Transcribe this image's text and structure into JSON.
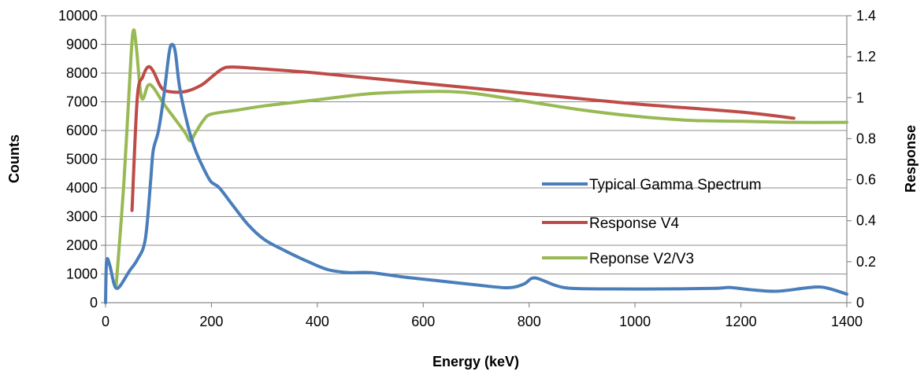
{
  "chart_data": {
    "type": "line",
    "title": "",
    "xlabel": "Energy (keV)",
    "ylabel": "Counts",
    "y2label": "Response",
    "xlim": [
      0,
      1400
    ],
    "ylim": [
      0,
      10000
    ],
    "y2lim": [
      0,
      1.4
    ],
    "x_ticks": [
      0,
      200,
      400,
      600,
      800,
      1000,
      1200,
      1400
    ],
    "y_ticks": [
      0,
      1000,
      2000,
      3000,
      4000,
      5000,
      6000,
      7000,
      8000,
      9000,
      10000
    ],
    "y2_ticks": [
      0,
      0.2,
      0.4,
      0.6,
      0.8,
      1,
      1.2,
      1.4
    ],
    "grid": true,
    "legend_position": "right",
    "series": [
      {
        "name": "Typical Gamma Spectrum",
        "axis": "left",
        "color": "#4a7ebb",
        "points": [
          [
            0,
            0
          ],
          [
            2,
            1450
          ],
          [
            8,
            1300
          ],
          [
            16,
            650
          ],
          [
            22,
            500
          ],
          [
            30,
            650
          ],
          [
            45,
            1100
          ],
          [
            60,
            1500
          ],
          [
            75,
            2200
          ],
          [
            85,
            4200
          ],
          [
            90,
            5300
          ],
          [
            100,
            6000
          ],
          [
            110,
            7200
          ],
          [
            120,
            8700
          ],
          [
            126,
            9000
          ],
          [
            132,
            8700
          ],
          [
            140,
            7500
          ],
          [
            155,
            6200
          ],
          [
            170,
            5300
          ],
          [
            190,
            4500
          ],
          [
            200,
            4200
          ],
          [
            215,
            4000
          ],
          [
            240,
            3400
          ],
          [
            270,
            2700
          ],
          [
            300,
            2200
          ],
          [
            340,
            1800
          ],
          [
            380,
            1450
          ],
          [
            420,
            1150
          ],
          [
            460,
            1050
          ],
          [
            500,
            1050
          ],
          [
            560,
            900
          ],
          [
            620,
            780
          ],
          [
            700,
            620
          ],
          [
            760,
            520
          ],
          [
            790,
            650
          ],
          [
            805,
            850
          ],
          [
            820,
            820
          ],
          [
            850,
            600
          ],
          [
            880,
            500
          ],
          [
            950,
            480
          ],
          [
            1050,
            480
          ],
          [
            1150,
            500
          ],
          [
            1180,
            530
          ],
          [
            1220,
            450
          ],
          [
            1270,
            400
          ],
          [
            1330,
            530
          ],
          [
            1360,
            520
          ],
          [
            1400,
            300
          ]
        ]
      },
      {
        "name": "Response V4",
        "axis": "right",
        "color": "#be4b48",
        "points": [
          [
            50,
            0.45
          ],
          [
            60,
            1.0
          ],
          [
            70,
            1.1
          ],
          [
            80,
            1.15
          ],
          [
            90,
            1.13
          ],
          [
            105,
            1.05
          ],
          [
            120,
            1.03
          ],
          [
            150,
            1.03
          ],
          [
            180,
            1.06
          ],
          [
            200,
            1.1
          ],
          [
            220,
            1.14
          ],
          [
            240,
            1.15
          ],
          [
            300,
            1.14
          ],
          [
            400,
            1.12
          ],
          [
            600,
            1.07
          ],
          [
            800,
            1.02
          ],
          [
            1000,
            0.97
          ],
          [
            1200,
            0.93
          ],
          [
            1300,
            0.9
          ]
        ]
      },
      {
        "name": "Reponse V2/V3",
        "axis": "right",
        "color": "#98b954",
        "points": [
          [
            20,
            0.08
          ],
          [
            35,
            0.6
          ],
          [
            48,
            1.2
          ],
          [
            53,
            1.33
          ],
          [
            58,
            1.25
          ],
          [
            68,
            1.0
          ],
          [
            80,
            1.06
          ],
          [
            90,
            1.05
          ],
          [
            110,
            0.97
          ],
          [
            130,
            0.9
          ],
          [
            150,
            0.83
          ],
          [
            160,
            0.79
          ],
          [
            170,
            0.83
          ],
          [
            185,
            0.89
          ],
          [
            200,
            0.92
          ],
          [
            250,
            0.94
          ],
          [
            300,
            0.96
          ],
          [
            400,
            0.99
          ],
          [
            500,
            1.02
          ],
          [
            600,
            1.03
          ],
          [
            650,
            1.03
          ],
          [
            700,
            1.02
          ],
          [
            800,
            0.98
          ],
          [
            900,
            0.94
          ],
          [
            1000,
            0.91
          ],
          [
            1100,
            0.89
          ],
          [
            1200,
            0.885
          ],
          [
            1300,
            0.88
          ],
          [
            1400,
            0.88
          ]
        ]
      }
    ]
  }
}
